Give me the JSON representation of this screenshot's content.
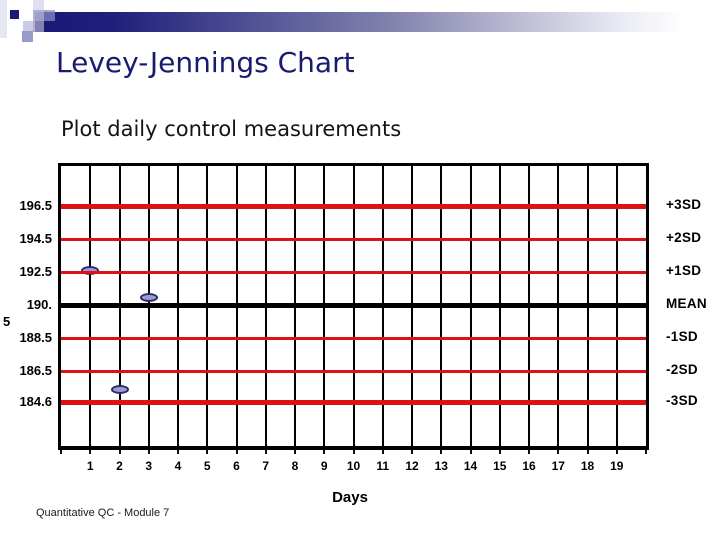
{
  "slide": {
    "title": "Levey-Jennings Chart",
    "subtitle": "Plot daily control measurements",
    "footer": "Quantitative QC - Module 7"
  },
  "colors": {
    "accent_navy": "#1a1a78",
    "title_navy": "#1a1a70",
    "control_line_red": "#dd1111",
    "mean_line_black": "#000000",
    "point_fill": "#9a9ad6",
    "point_border": "#2a2a66"
  },
  "chart_data": {
    "type": "scatter",
    "subtype": "levey-jennings-control-chart",
    "title": "Levey-Jennings Chart",
    "xlabel": "Days",
    "ylabel": "",
    "xlim": [
      0,
      20
    ],
    "ylim": [
      183.2,
      197.9
    ],
    "grid": "vertical-only",
    "legend": "none",
    "x_ticks": [
      "1",
      "2",
      "3",
      "4",
      "5",
      "6",
      "7",
      "8",
      "9",
      "10",
      "11",
      "12",
      "13",
      "14",
      "15",
      "16",
      "17",
      "18",
      "19"
    ],
    "control_lines": [
      {
        "sd": "+3SD",
        "value": 196.5,
        "axis_label": "196.5",
        "style": "thick-red"
      },
      {
        "sd": "+2SD",
        "value": 194.5,
        "axis_label": "194.5",
        "style": "red"
      },
      {
        "sd": "+1SD",
        "value": 192.5,
        "axis_label": "192.5",
        "style": "red"
      },
      {
        "sd": "MEAN",
        "value": 190.5,
        "axis_label": "190.",
        "axis_label_wrap": "5",
        "style": "thick-black"
      },
      {
        "sd": "-1SD",
        "value": 188.5,
        "axis_label": "188.5",
        "style": "red"
      },
      {
        "sd": "-2SD",
        "value": 186.5,
        "axis_label": "186.5",
        "style": "red"
      },
      {
        "sd": "-3SD",
        "value": 184.6,
        "axis_label": "184.6",
        "style": "thick-red"
      }
    ],
    "points": [
      {
        "day": 1,
        "value": 192.6
      },
      {
        "day": 2,
        "value": 185.4
      },
      {
        "day": 3,
        "value": 191.0
      }
    ]
  }
}
